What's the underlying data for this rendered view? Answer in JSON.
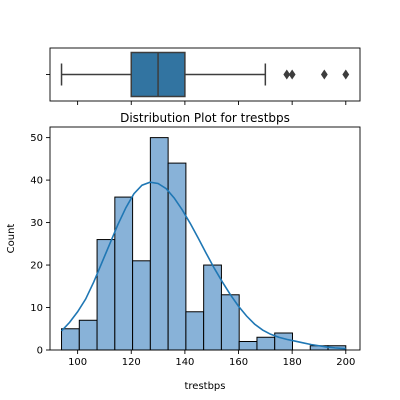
{
  "chart_data": [
    {
      "type": "boxplot",
      "variable": "trestbps",
      "xlim": [
        89.7,
        205.3
      ],
      "stats": {
        "whisker_low": 94,
        "q1": 120,
        "median": 130,
        "q3": 140,
        "whisker_high": 170
      },
      "outliers": [
        178,
        180,
        192,
        200
      ],
      "colors": {
        "box": "#3274a1",
        "line": "#3d3d3d"
      },
      "grid": false
    },
    {
      "type": "histogram",
      "title": "Distribution Plot for trestbps",
      "xlabel": "trestbps",
      "ylabel": "Count",
      "xlim": [
        89.7,
        205.3
      ],
      "ylim": [
        0,
        52.5
      ],
      "xticks": [
        100,
        120,
        140,
        160,
        180,
        200
      ],
      "yticks": [
        0,
        10,
        20,
        30,
        40,
        50
      ],
      "bin_edges": [
        94,
        100.625,
        107.25,
        113.875,
        120.5,
        127.125,
        133.75,
        140.375,
        147,
        153.625,
        160.25,
        166.875,
        173.5,
        180.125,
        186.75,
        193.375,
        200
      ],
      "counts": [
        5,
        7,
        26,
        36,
        21,
        50,
        44,
        9,
        20,
        13,
        2,
        3,
        4,
        0,
        1,
        1
      ],
      "kde": {
        "x": [
          94,
          97,
          100,
          103,
          106,
          109,
          112,
          115,
          118,
          121,
          124,
          127,
          130,
          133,
          136,
          139,
          142,
          145,
          148,
          151,
          154,
          157,
          160,
          163,
          166,
          169,
          172,
          175,
          178,
          181,
          184,
          187,
          190,
          193,
          196,
          200
        ],
        "y": [
          4.5,
          6.5,
          9.0,
          12.0,
          16.0,
          20.5,
          25.0,
          29.5,
          33.5,
          36.8,
          38.8,
          39.5,
          39.2,
          38.0,
          35.8,
          33.0,
          29.8,
          26.3,
          22.7,
          19.2,
          16.0,
          13.0,
          10.3,
          8.0,
          6.1,
          4.7,
          3.7,
          3.0,
          2.5,
          2.1,
          1.7,
          1.3,
          1.0,
          0.7,
          0.5,
          0.3
        ]
      },
      "colors": {
        "bar_fill": "#88b2d8",
        "bar_edge": "#000000",
        "kde_line": "#1f77b4"
      },
      "grid": false
    }
  ]
}
